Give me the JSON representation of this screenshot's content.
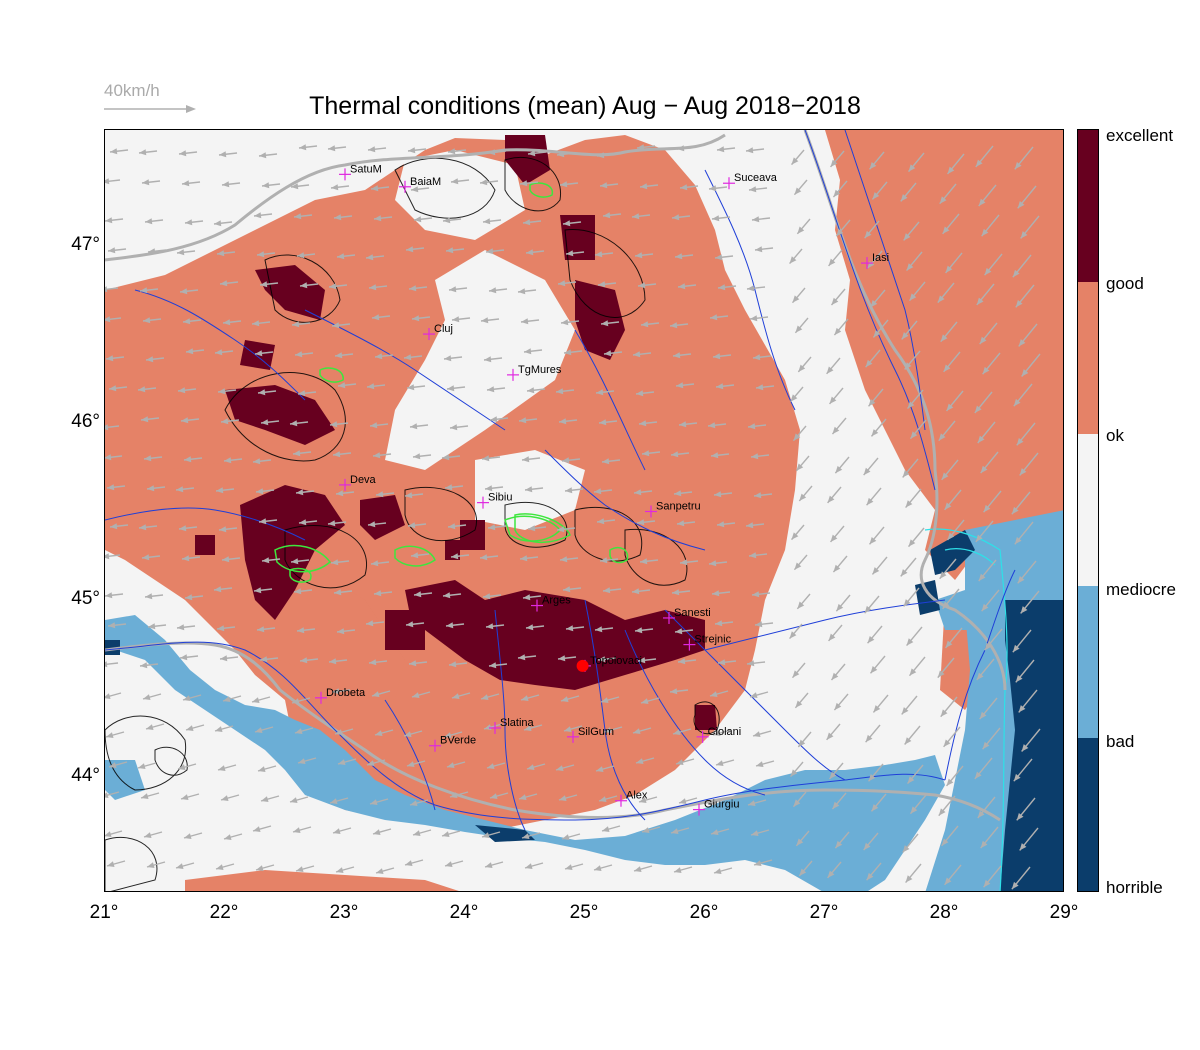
{
  "title": "Thermal conditions (mean) Aug − Aug  2018−2018",
  "wind_scale": {
    "label": "40km/h"
  },
  "x_ticks": [
    "21°",
    "22°",
    "23°",
    "24°",
    "25°",
    "26°",
    "27°",
    "28°",
    "29°"
  ],
  "y_ticks": [
    "47°",
    "46°",
    "45°",
    "44°"
  ],
  "colorbar": {
    "labels": [
      "excellent",
      "good",
      "ok",
      "mediocre",
      "bad",
      "horrible"
    ],
    "colors": [
      "#67001f",
      "#e58267",
      "#f4f4f4",
      "#6baed6",
      "#0b3d6b"
    ]
  },
  "cities": [
    {
      "name": "SatuM",
      "lon": 23.0,
      "lat": 47.45
    },
    {
      "name": "BaiaM",
      "lon": 23.5,
      "lat": 47.38
    },
    {
      "name": "Suceava",
      "lon": 26.2,
      "lat": 47.4
    },
    {
      "name": "Iasi",
      "lon": 27.35,
      "lat": 46.95
    },
    {
      "name": "Cluj",
      "lon": 23.7,
      "lat": 46.55
    },
    {
      "name": "TgMures",
      "lon": 24.4,
      "lat": 46.32
    },
    {
      "name": "Deva",
      "lon": 23.0,
      "lat": 45.7
    },
    {
      "name": "Sibiu",
      "lon": 24.15,
      "lat": 45.6
    },
    {
      "name": "Sanpetru",
      "lon": 25.55,
      "lat": 45.55
    },
    {
      "name": "Arges",
      "lon": 24.6,
      "lat": 45.02
    },
    {
      "name": "Sanesti",
      "lon": 25.7,
      "lat": 44.95
    },
    {
      "name": "Strejnic",
      "lon": 25.87,
      "lat": 44.8
    },
    {
      "name": "Topolovaci",
      "lon": 25.0,
      "lat": 44.68
    },
    {
      "name": "Drobeta",
      "lon": 22.8,
      "lat": 44.5
    },
    {
      "name": "Slatina",
      "lon": 24.25,
      "lat": 44.33
    },
    {
      "name": "SilGum",
      "lon": 24.9,
      "lat": 44.28
    },
    {
      "name": "Ciolani",
      "lon": 25.98,
      "lat": 44.28
    },
    {
      "name": "BVerde",
      "lon": 23.75,
      "lat": 44.23
    },
    {
      "name": "Alex",
      "lon": 25.3,
      "lat": 43.92
    },
    {
      "name": "Giurgiu",
      "lon": 25.95,
      "lat": 43.87
    }
  ],
  "takeoff": {
    "name": "Topolovaci",
    "lon": 24.98,
    "lat": 44.68
  }
}
